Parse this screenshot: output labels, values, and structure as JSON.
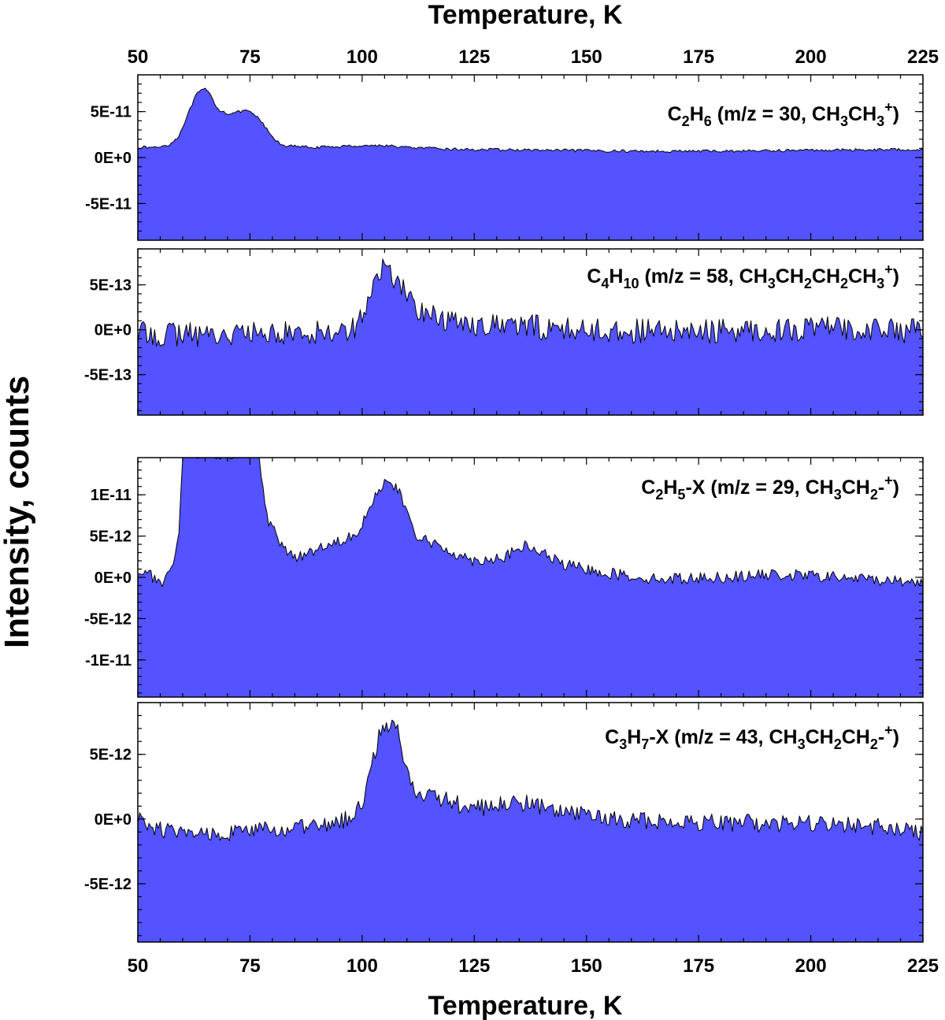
{
  "colors": {
    "fill": "#5353ff",
    "line": "#000000"
  },
  "axes": {
    "top_title": "Temperature, K",
    "bottom_title": "Temperature, K",
    "y_title": "Intensity, counts",
    "x_ticks": [
      "50",
      "75",
      "100",
      "125",
      "150",
      "175",
      "200",
      "225"
    ]
  },
  "chart_data": [
    {
      "type": "area",
      "label_parts": [
        {
          "t": "C"
        },
        {
          "t": "2",
          "sub": true
        },
        {
          "t": "H"
        },
        {
          "t": "6",
          "sub": true
        },
        {
          "t": " (m/z = 30, CH"
        },
        {
          "t": "3",
          "sub": true
        },
        {
          "t": "CH"
        },
        {
          "t": "3",
          "sub": true
        },
        {
          "t": "+",
          "sup": true
        },
        {
          "t": ")"
        }
      ],
      "xlim": [
        50,
        225
      ],
      "ylim": [
        -9e-11,
        9e-11
      ],
      "yticks": [
        5e-11,
        0,
        -5e-11
      ],
      "ytick_labels": [
        "5E-11",
        "0E+0",
        "-5E-11"
      ],
      "points": [
        [
          50,
          1.1e-11
        ],
        [
          54,
          1.1e-11
        ],
        [
          57,
          1.4e-11
        ],
        [
          59,
          2.2e-11
        ],
        [
          61,
          4.5e-11
        ],
        [
          63,
          6.8e-11
        ],
        [
          64,
          7.3e-11
        ],
        [
          65,
          7.4e-11
        ],
        [
          66,
          7e-11
        ],
        [
          67,
          6e-11
        ],
        [
          68,
          5.2e-11
        ],
        [
          70,
          4.8e-11
        ],
        [
          72,
          4.9e-11
        ],
        [
          74,
          5.1e-11
        ],
        [
          76,
          4.7e-11
        ],
        [
          78,
          3.6e-11
        ],
        [
          80,
          2.2e-11
        ],
        [
          82,
          1.4e-11
        ],
        [
          85,
          1.2e-11
        ],
        [
          90,
          1.1e-11
        ],
        [
          100,
          1.3e-11
        ],
        [
          105,
          1.3e-11
        ],
        [
          110,
          1.1e-11
        ],
        [
          120,
          9e-12
        ],
        [
          140,
          8e-12
        ],
        [
          160,
          7e-12
        ],
        [
          180,
          7e-12
        ],
        [
          200,
          8e-12
        ],
        [
          225,
          9e-12
        ]
      ],
      "noise": 1.5e-12
    },
    {
      "type": "area",
      "label_parts": [
        {
          "t": "C"
        },
        {
          "t": "4",
          "sub": true
        },
        {
          "t": "H"
        },
        {
          "t": "10",
          "sub": true
        },
        {
          "t": " (m/z = 58, CH"
        },
        {
          "t": "3",
          "sub": true
        },
        {
          "t": "CH"
        },
        {
          "t": "2",
          "sub": true
        },
        {
          "t": "CH"
        },
        {
          "t": "2",
          "sub": true
        },
        {
          "t": "CH"
        },
        {
          "t": "3",
          "sub": true
        },
        {
          "t": "+",
          "sup": true
        },
        {
          "t": ")"
        }
      ],
      "xlim": [
        50,
        225
      ],
      "ylim": [
        -9.5e-13,
        9e-13
      ],
      "yticks": [
        5e-13,
        0,
        -5e-13
      ],
      "ytick_labels": [
        "5E-13",
        "0E+0",
        "-5E-13"
      ],
      "points": [
        [
          50,
          -5e-14
        ],
        [
          70,
          -5e-14
        ],
        [
          90,
          -3e-14
        ],
        [
          98,
          2e-14
        ],
        [
          101,
          2.5e-13
        ],
        [
          103,
          5.5e-13
        ],
        [
          105,
          7e-13
        ],
        [
          107,
          6e-13
        ],
        [
          109,
          4.5e-13
        ],
        [
          112,
          2.5e-13
        ],
        [
          118,
          1e-13
        ],
        [
          130,
          5e-14
        ],
        [
          150,
          0.0
        ],
        [
          170,
          -3e-14
        ],
        [
          190,
          0.0
        ],
        [
          210,
          2e-14
        ],
        [
          225,
          -2e-14
        ]
      ],
      "noise": 1.4e-13
    },
    {
      "type": "area",
      "label_parts": [
        {
          "t": "C"
        },
        {
          "t": "2",
          "sub": true
        },
        {
          "t": "H"
        },
        {
          "t": "5",
          "sub": true
        },
        {
          "t": "-X (m/z = 29, CH"
        },
        {
          "t": "3",
          "sub": true
        },
        {
          "t": "CH"
        },
        {
          "t": "2",
          "sub": true
        },
        {
          "t": "-",
          "sup": false
        },
        {
          "t": "+",
          "sup": true
        },
        {
          "t": ")"
        }
      ],
      "xlim": [
        50,
        225
      ],
      "ylim": [
        -1.45e-11,
        1.45e-11
      ],
      "yticks": [
        1e-11,
        5e-12,
        0,
        -5e-12,
        -1e-11
      ],
      "ytick_labels": [
        "1E-11",
        "5E-12",
        "0E+0",
        "-5E-12",
        "-1E-11"
      ],
      "points": [
        [
          50,
          8e-13
        ],
        [
          53,
          3e-13
        ],
        [
          55,
          -1e-12
        ],
        [
          57,
          2e-13
        ],
        [
          59,
          4e-12
        ],
        [
          60,
          1.5e-11
        ],
        [
          62,
          1.5e-11
        ],
        [
          77,
          1.5e-11
        ],
        [
          78,
          1e-11
        ],
        [
          79,
          7e-12
        ],
        [
          81,
          5e-12
        ],
        [
          83,
          3e-12
        ],
        [
          86,
          2.5e-12
        ],
        [
          90,
          3.5e-12
        ],
        [
          95,
          4.5e-12
        ],
        [
          99,
          5.5e-12
        ],
        [
          102,
          9e-12
        ],
        [
          105,
          1.15e-11
        ],
        [
          108,
          1.05e-11
        ],
        [
          110,
          8e-12
        ],
        [
          112,
          5e-12
        ],
        [
          118,
          3.5e-12
        ],
        [
          125,
          2e-12
        ],
        [
          132,
          2.5e-12
        ],
        [
          136,
          3.8e-12
        ],
        [
          140,
          3e-12
        ],
        [
          145,
          1.5e-12
        ],
        [
          155,
          5e-13
        ],
        [
          165,
          -2e-13
        ],
        [
          180,
          0.0
        ],
        [
          190,
          3e-13
        ],
        [
          200,
          2e-13
        ],
        [
          215,
          -3e-13
        ],
        [
          225,
          -6e-13
        ]
      ],
      "noise": 7e-13
    },
    {
      "type": "area",
      "label_parts": [
        {
          "t": "C"
        },
        {
          "t": "3",
          "sub": true
        },
        {
          "t": "H"
        },
        {
          "t": "7",
          "sub": true
        },
        {
          "t": "-X (m/z = 43, CH"
        },
        {
          "t": "3",
          "sub": true
        },
        {
          "t": "CH"
        },
        {
          "t": "2",
          "sub": true
        },
        {
          "t": "CH"
        },
        {
          "t": "2",
          "sub": true
        },
        {
          "t": "-",
          "sup": false
        },
        {
          "t": "+",
          "sup": true
        },
        {
          "t": ")"
        }
      ],
      "xlim": [
        50,
        225
      ],
      "ylim": [
        -9.5e-12,
        9e-12
      ],
      "yticks": [
        5e-12,
        0,
        -5e-12
      ],
      "ytick_labels": [
        "5E-12",
        "0E+0",
        "-5E-12"
      ],
      "points": [
        [
          50,
          0.0
        ],
        [
          55,
          -8e-13
        ],
        [
          60,
          -1.2e-12
        ],
        [
          70,
          -1e-12
        ],
        [
          85,
          -8e-13
        ],
        [
          95,
          -3e-13
        ],
        [
          100,
          1e-12
        ],
        [
          102,
          4e-12
        ],
        [
          104,
          6.8e-12
        ],
        [
          106,
          7.3e-12
        ],
        [
          108,
          7e-12
        ],
        [
          110,
          3.5e-12
        ],
        [
          112,
          2.2e-12
        ],
        [
          118,
          1.5e-12
        ],
        [
          125,
          8e-13
        ],
        [
          135,
          1.3e-12
        ],
        [
          145,
          5e-13
        ],
        [
          155,
          0.0
        ],
        [
          170,
          -2e-13
        ],
        [
          185,
          -3e-13
        ],
        [
          200,
          -4e-13
        ],
        [
          215,
          -6e-13
        ],
        [
          225,
          -1e-12
        ]
      ],
      "noise": 7e-13
    }
  ]
}
